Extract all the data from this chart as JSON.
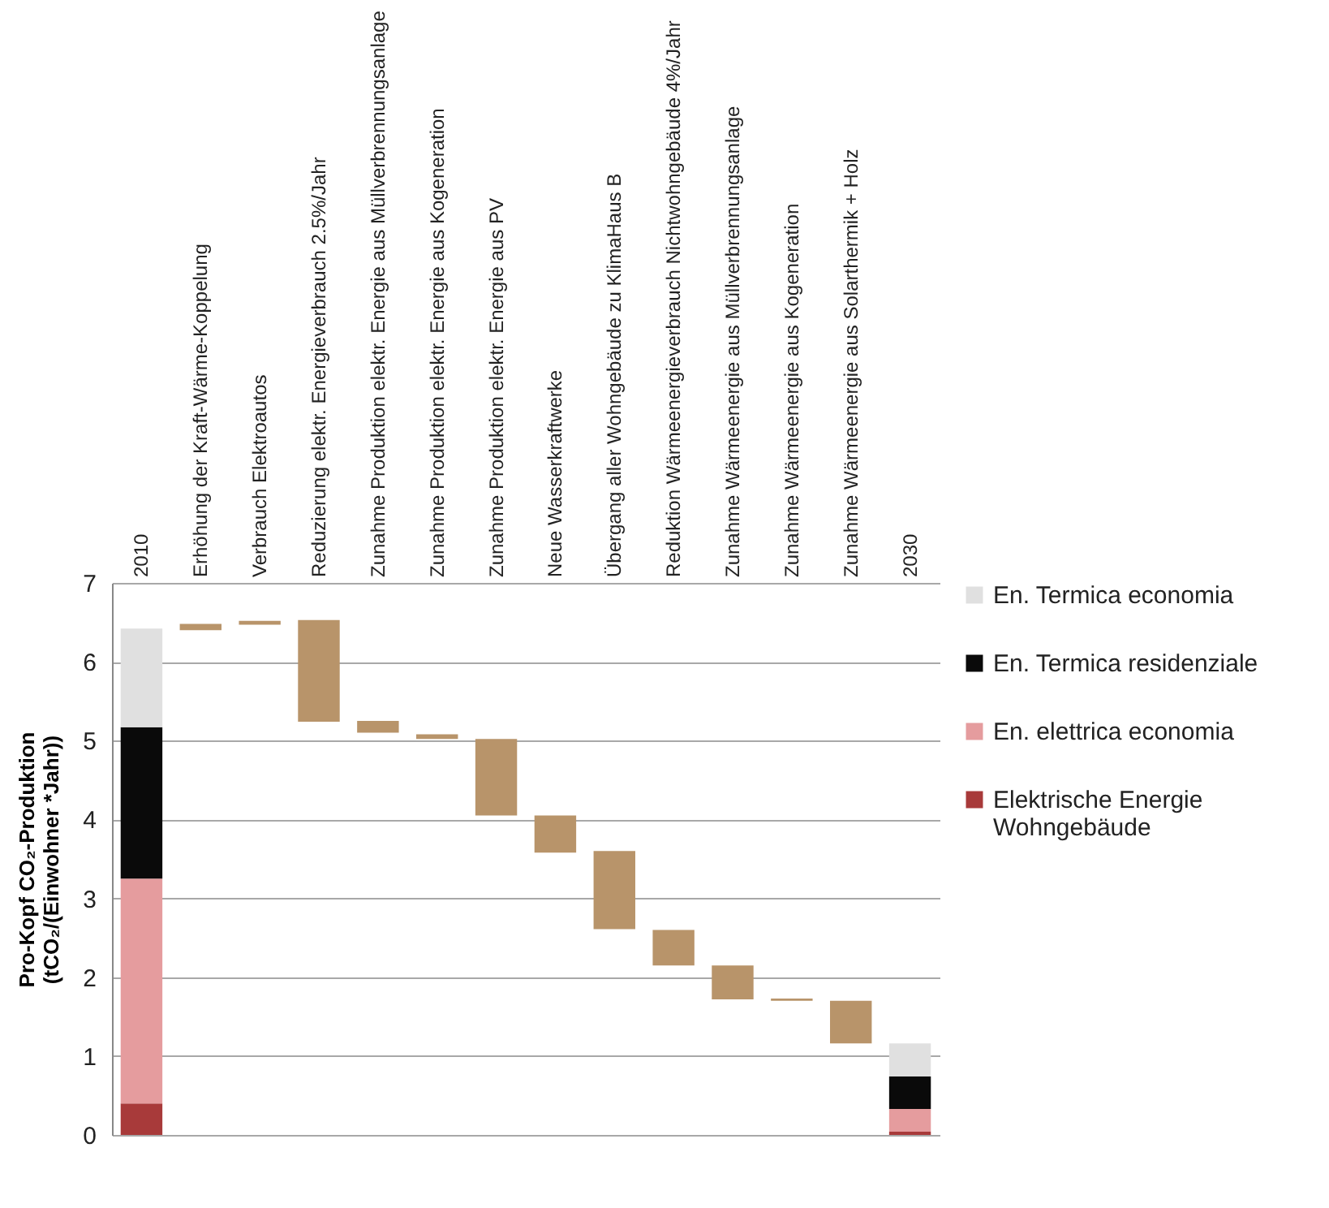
{
  "chart_data": {
    "type": "bar",
    "stacked": true,
    "ylabel": "Pro-Kopf CO₂-Produktion\n(tCO₂/(Einwohner *Jahr))",
    "categories": [
      "2010",
      "Erhöhung der Kraft-Wärme-Koppelung",
      "Verbrauch Elektroautos",
      "Reduzierung elektr. Energieverbrauch 2.5%/Jahr",
      "Zunahme Produktion elektr. Energie aus Müllverbrennungsanlage",
      "Zunahme Produktion elektr. Energie aus Kogeneration",
      "Zunahme Produktion elektr. Energie aus PV",
      "Neue Wasserkraftwerke",
      "Übergang aller Wohngebäude zu KlimaHaus B",
      "Reduktion Wärmeenergieverbrauch Nichtwohngebäude 4%/Jahr",
      "Zunahme Wärmeenergie aus Müllverbrennungsanlage",
      "Zunahme Wärmeenergie aus Kogeneration",
      "Zunahme Wärmeenergie aus Solarthermik + Holz",
      "2030"
    ],
    "series": [
      {
        "name": "Elektrische Energie Wohngebäude",
        "color": "#a83a3a",
        "values": [
          0.4,
          null,
          null,
          null,
          null,
          null,
          null,
          null,
          null,
          null,
          null,
          null,
          null,
          0.04
        ]
      },
      {
        "name": "En. elettrica economia",
        "color": "#e59c9e",
        "values": [
          2.85,
          null,
          null,
          null,
          null,
          null,
          null,
          null,
          null,
          null,
          null,
          null,
          null,
          0.29
        ]
      },
      {
        "name": "En. Termica residenziale",
        "color": "#0a0a0a",
        "values": [
          1.92,
          null,
          null,
          null,
          null,
          null,
          null,
          null,
          null,
          null,
          null,
          null,
          null,
          0.41
        ]
      },
      {
        "name": "En. Termica economia",
        "color": "#e0e0e0",
        "values": [
          1.25,
          null,
          null,
          null,
          null,
          null,
          null,
          null,
          null,
          null,
          null,
          null,
          null,
          0.42
        ]
      },
      {
        "color": "#b8946a",
        "base": [
          null,
          6.4,
          6.47,
          5.24,
          5.1,
          5.02,
          4.05,
          3.58,
          2.61,
          2.15,
          1.72,
          1.7,
          1.16,
          null
        ],
        "values": [
          null,
          0.08,
          0.05,
          1.29,
          0.15,
          0.06,
          0.97,
          0.47,
          0.99,
          0.45,
          0.43,
          0.03,
          0.54,
          null
        ]
      }
    ],
    "ylim": [
      0,
      7
    ],
    "yticks": [
      0,
      1,
      2,
      3,
      4,
      5,
      6,
      7
    ],
    "grid": "y",
    "legend": "right"
  }
}
